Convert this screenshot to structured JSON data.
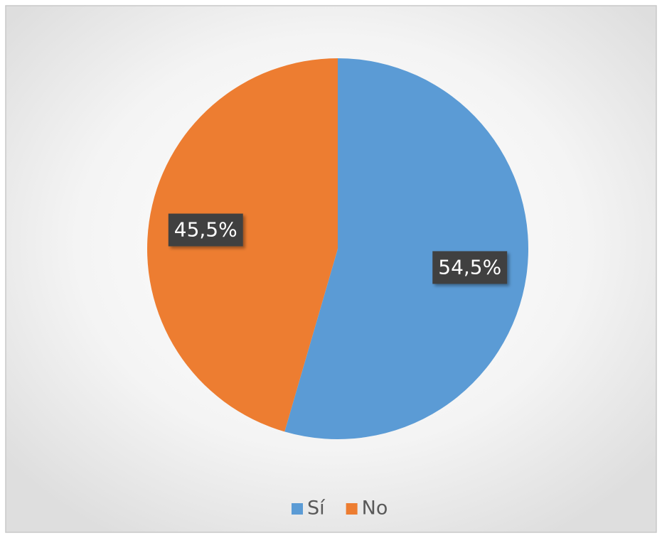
{
  "chart_data": {
    "type": "pie",
    "categories": [
      "Sí",
      "No"
    ],
    "values": [
      54.5,
      45.5
    ],
    "value_labels": [
      "54,5%",
      "45,5%"
    ],
    "colors": [
      "#5b9bd5",
      "#ed7d31"
    ],
    "legend": "bottom"
  }
}
